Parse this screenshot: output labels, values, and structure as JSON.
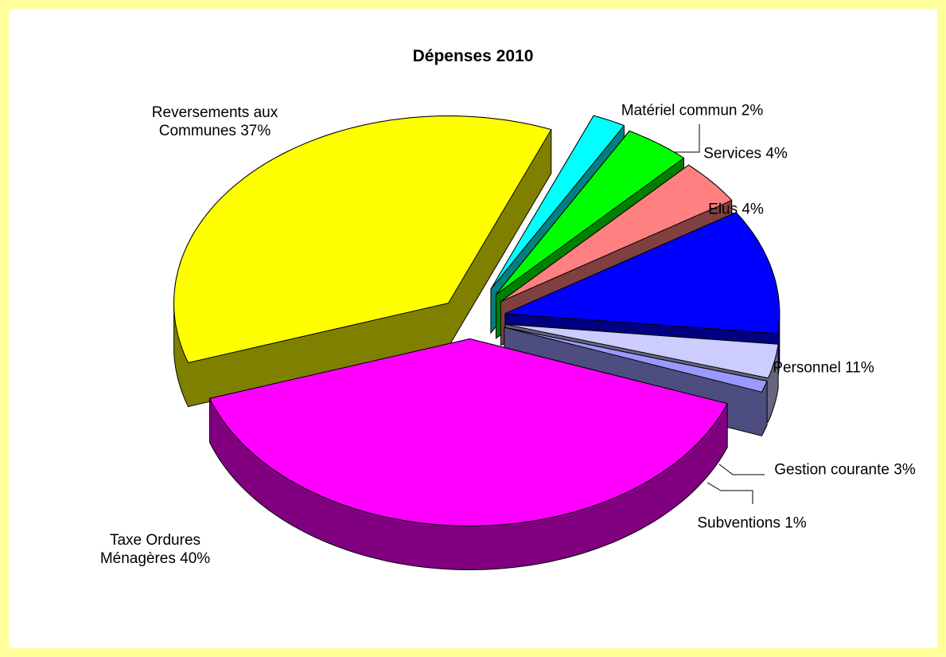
{
  "chart_data": {
    "type": "pie3d",
    "title": "Dépenses 2010",
    "categories": [
      "Matériel commun",
      "Services",
      "Elus",
      "Personnel",
      "Gestion courante",
      "Subventions",
      "Taxe Ordures Ménagères",
      "Reversements aux Communes"
    ],
    "values": [
      2,
      4,
      4,
      11,
      3,
      1,
      40,
      37
    ],
    "value_labels": [
      "2%",
      "4%",
      "4%",
      "11%",
      "3%",
      "1%",
      "40%",
      "37%"
    ],
    "colors": [
      "#00ffff",
      "#00ff00",
      "#ff8080",
      "#0000ff",
      "#ccccff",
      "#9999ff",
      "#ff00ff",
      "#ffff00"
    ]
  }
}
